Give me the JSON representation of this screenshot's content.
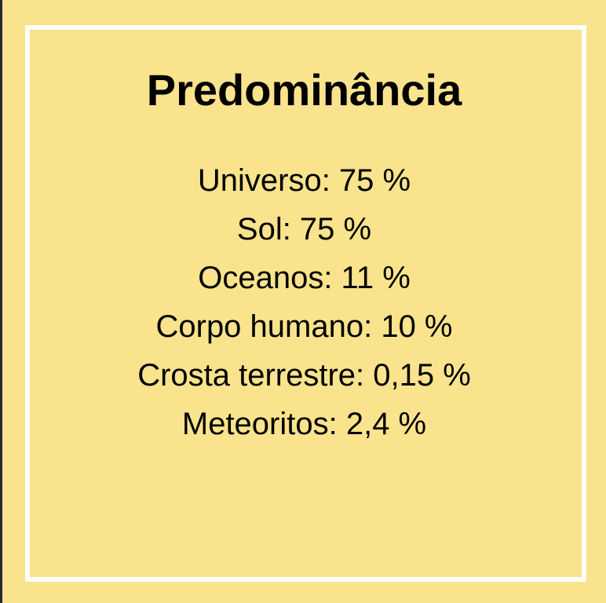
{
  "title": "Predominância",
  "items": [
    "Universo: 75 %",
    "Sol: 75 %",
    "Oceanos: 11 %",
    "Corpo humano: 10 %",
    "Crosta terrestre: 0,15 %",
    "Meteoritos: 2,4 %"
  ],
  "colors": {
    "card_background": "#f9e38c",
    "frame_border": "#ffffff",
    "text": "#000000",
    "outer_background": "#1f2a30"
  }
}
